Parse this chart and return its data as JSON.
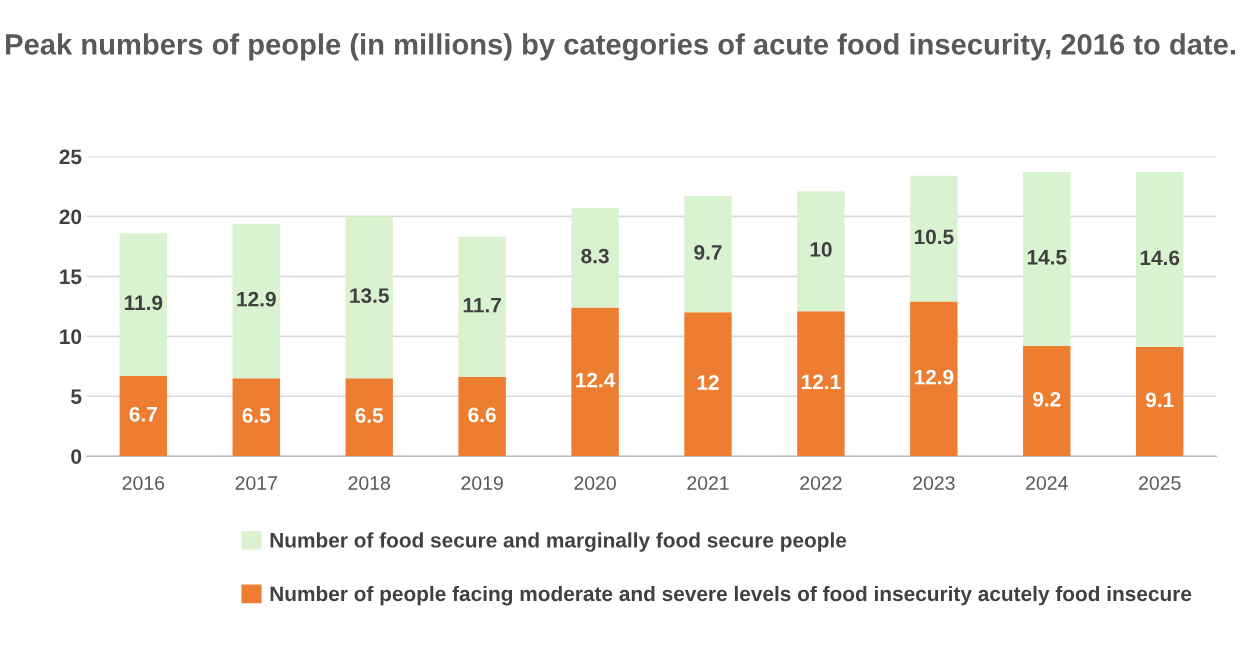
{
  "chart_data": {
    "type": "bar",
    "title": "Peak numbers of people (in millions) by categories of acute food insecurity, 2016 to date.",
    "categories": [
      "2016",
      "2017",
      "2018",
      "2019",
      "2020",
      "2021",
      "2022",
      "2023",
      "2024",
      "2025"
    ],
    "series": [
      {
        "name": "Number of people facing moderate and severe levels of food insecurity acutely food insecure",
        "color": "#ed7d31",
        "values": [
          6.7,
          6.5,
          6.5,
          6.6,
          12.4,
          12,
          12.1,
          12.9,
          9.2,
          9.1
        ]
      },
      {
        "name": "Number of food secure and marginally food secure people",
        "color": "#d9f2d0",
        "values": [
          11.9,
          12.9,
          13.5,
          11.7,
          8.3,
          9.7,
          10,
          10.5,
          14.5,
          14.6
        ]
      }
    ],
    "stacked": true,
    "data_labels": true,
    "ylim": [
      0,
      25
    ],
    "yticks": [
      0,
      5,
      10,
      15,
      20,
      25
    ],
    "grid": "y",
    "legend": "bottom"
  }
}
